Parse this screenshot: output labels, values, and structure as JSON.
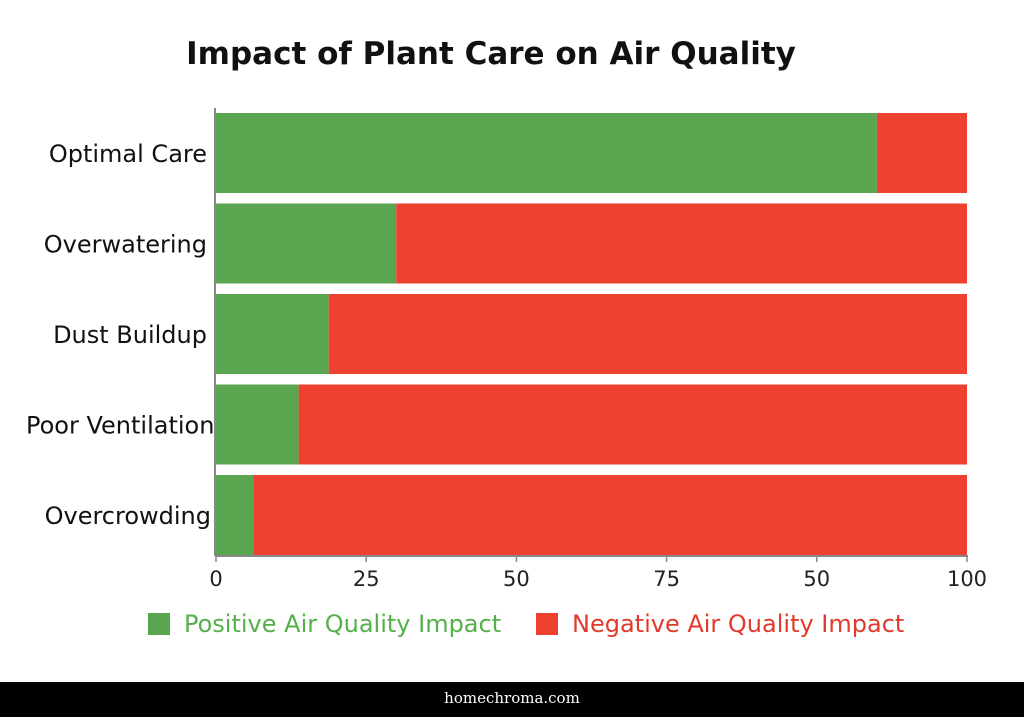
{
  "chart_data": {
    "type": "bar",
    "orientation": "horizontal",
    "stacked": true,
    "title": "Impact of Plant Care on Air Quality",
    "categories": [
      "Optimal Care",
      "Overwatering",
      "Dust Buildup",
      "Poor Ventilation",
      "Overcrowding"
    ],
    "series": [
      {
        "name": "Positive Air Quality Impact",
        "color": "#5aa650",
        "values": [
          88,
          24,
          15,
          11,
          5
        ]
      },
      {
        "name": "Negative Air Quality Impact",
        "color": "#ee4130",
        "values": [
          12,
          76,
          85,
          89,
          95
        ]
      }
    ],
    "xlim": [
      0,
      100
    ],
    "xtick_labels": [
      "0",
      "25",
      "50",
      "75",
      "50",
      "100"
    ],
    "grid": false,
    "legend": "bottom"
  },
  "footer": "homechroma.com"
}
